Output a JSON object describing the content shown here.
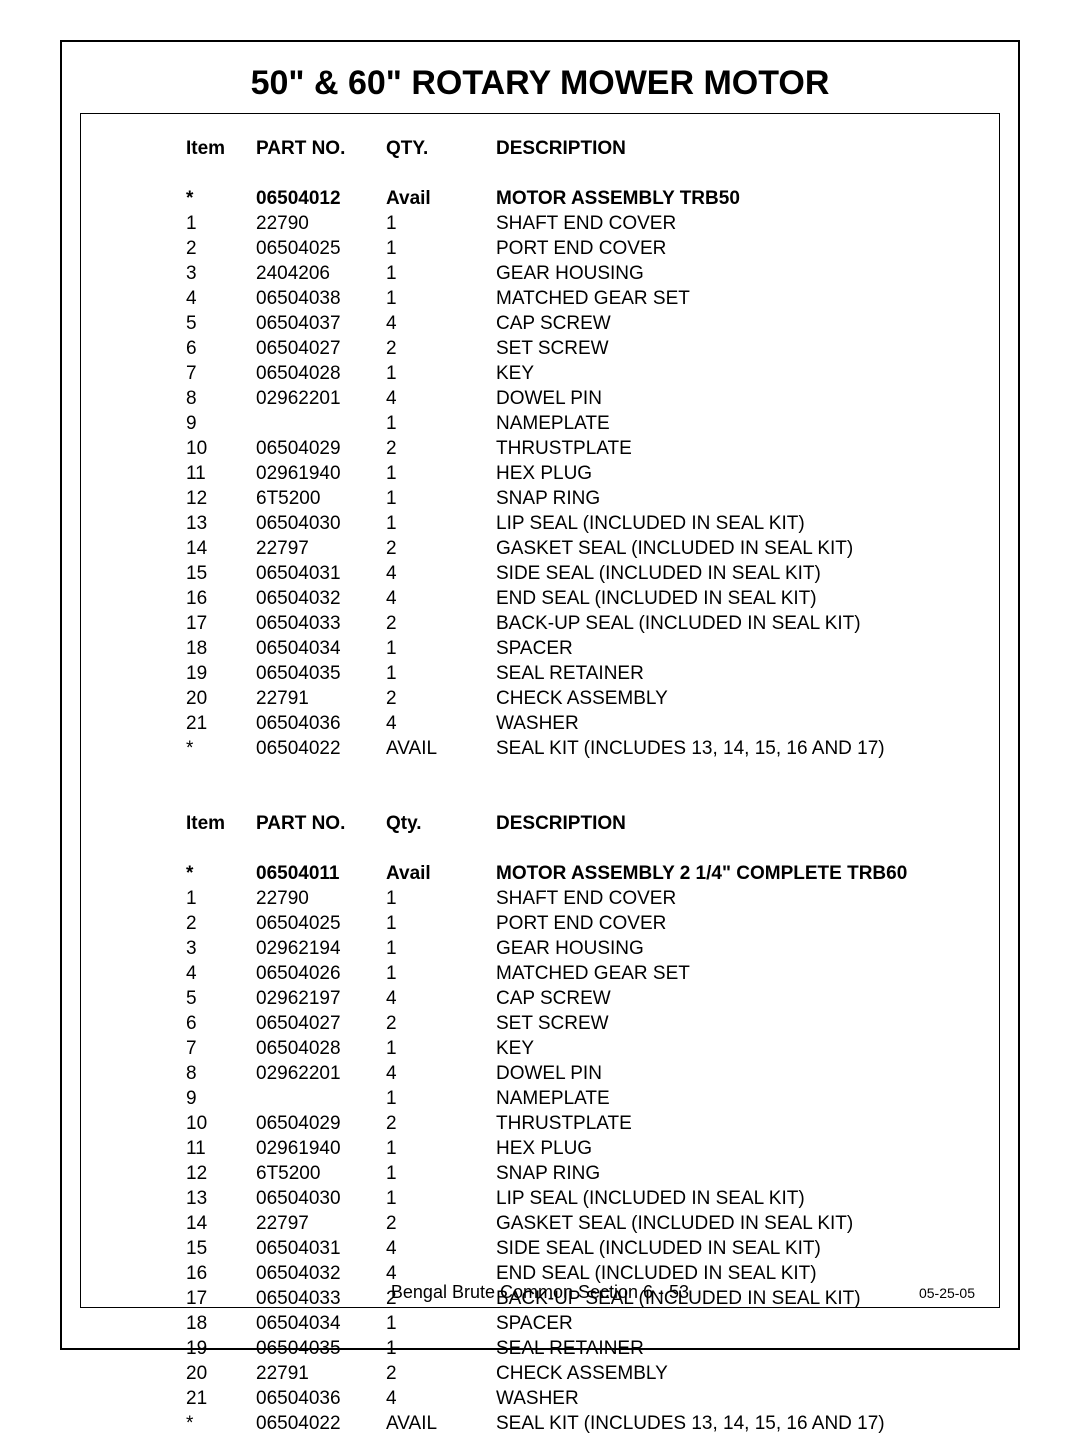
{
  "title": "50\" & 60\" ROTARY MOWER MOTOR",
  "footer": "Bengal Brute Common Section  6 - 53",
  "date": "05-25-05",
  "tables": [
    {
      "header": {
        "item": "Item",
        "part": "PART NO.",
        "qty": "QTY.",
        "desc": "DESCRIPTION"
      },
      "lead": {
        "item": "*",
        "part": "06504012",
        "qty": "Avail",
        "desc": "MOTOR ASSEMBLY TRB50"
      },
      "rows": [
        {
          "item": "1",
          "part": "22790",
          "qty": "1",
          "desc": "SHAFT END COVER"
        },
        {
          "item": "2",
          "part": "06504025",
          "qty": "1",
          "desc": "PORT END COVER"
        },
        {
          "item": "3",
          "part": "2404206",
          "qty": "1",
          "desc": "GEAR HOUSING"
        },
        {
          "item": "4",
          "part": "06504038",
          "qty": "1",
          "desc": "MATCHED GEAR SET"
        },
        {
          "item": "5",
          "part": "06504037",
          "qty": "4",
          "desc": "CAP SCREW"
        },
        {
          "item": "6",
          "part": "06504027",
          "qty": "2",
          "desc": "SET SCREW"
        },
        {
          "item": "7",
          "part": "06504028",
          "qty": "1",
          "desc": "KEY"
        },
        {
          "item": "8",
          "part": "02962201",
          "qty": "4",
          "desc": "DOWEL PIN"
        },
        {
          "item": "9",
          "part": "",
          "qty": "1",
          "desc": "NAMEPLATE"
        },
        {
          "item": "10",
          "part": "06504029",
          "qty": "2",
          "desc": "THRUSTPLATE"
        },
        {
          "item": "11",
          "part": "02961940",
          "qty": "1",
          "desc": "HEX PLUG"
        },
        {
          "item": "12",
          "part": "6T5200",
          "qty": "1",
          "desc": "SNAP RING"
        },
        {
          "item": "13",
          "part": "06504030",
          "qty": "1",
          "desc": "LIP SEAL (INCLUDED IN SEAL KIT)"
        },
        {
          "item": "14",
          "part": "22797",
          "qty": "2",
          "desc": "GASKET SEAL (INCLUDED IN SEAL KIT)"
        },
        {
          "item": "15",
          "part": "06504031",
          "qty": "4",
          "desc": "SIDE SEAL (INCLUDED IN SEAL KIT)"
        },
        {
          "item": "16",
          "part": "06504032",
          "qty": "4",
          "desc": "END SEAL (INCLUDED IN SEAL KIT)"
        },
        {
          "item": "17",
          "part": "06504033",
          "qty": "2",
          "desc": "BACK-UP SEAL (INCLUDED IN SEAL KIT)"
        },
        {
          "item": "18",
          "part": "06504034",
          "qty": "1",
          "desc": "SPACER"
        },
        {
          "item": "19",
          "part": "06504035",
          "qty": "1",
          "desc": "SEAL RETAINER"
        },
        {
          "item": "20",
          "part": "22791",
          "qty": "2",
          "desc": "CHECK ASSEMBLY"
        },
        {
          "item": "21",
          "part": "06504036",
          "qty": "4",
          "desc": "WASHER"
        },
        {
          "item": "*",
          "part": "06504022",
          "qty": "AVAIL",
          "desc": "SEAL KIT (INCLUDES 13, 14, 15, 16 AND 17)"
        }
      ]
    },
    {
      "header": {
        "item": "Item",
        "part": "PART NO.",
        "qty": "Qty.",
        "desc": "DESCRIPTION"
      },
      "lead": {
        "item": "*",
        "part": "06504011",
        "qty": "Avail",
        "desc": "MOTOR ASSEMBLY 2 1/4\"  COMPLETE TRB60"
      },
      "rows": [
        {
          "item": "1",
          "part": "22790",
          "qty": "1",
          "desc": "SHAFT END COVER"
        },
        {
          "item": "2",
          "part": "06504025",
          "qty": "1",
          "desc": "PORT END COVER"
        },
        {
          "item": "3",
          "part": "02962194",
          "qty": "1",
          "desc": "GEAR HOUSING"
        },
        {
          "item": "4",
          "part": "06504026",
          "qty": "1",
          "desc": "MATCHED GEAR SET"
        },
        {
          "item": "5",
          "part": "02962197",
          "qty": "4",
          "desc": "CAP SCREW"
        },
        {
          "item": "6",
          "part": "06504027",
          "qty": "2",
          "desc": "SET SCREW"
        },
        {
          "item": "7",
          "part": "06504028",
          "qty": "1",
          "desc": "KEY"
        },
        {
          "item": "8",
          "part": "02962201",
          "qty": "4",
          "desc": "DOWEL PIN"
        },
        {
          "item": "9",
          "part": "",
          "qty": "1",
          "desc": "NAMEPLATE"
        },
        {
          "item": "10",
          "part": "06504029",
          "qty": "2",
          "desc": "THRUSTPLATE"
        },
        {
          "item": "11",
          "part": "02961940",
          "qty": "1",
          "desc": "HEX PLUG"
        },
        {
          "item": "12",
          "part": "6T5200",
          "qty": "1",
          "desc": "SNAP RING"
        },
        {
          "item": "13",
          "part": "06504030",
          "qty": "1",
          "desc": "LIP SEAL (INCLUDED IN SEAL KIT)"
        },
        {
          "item": "14",
          "part": "22797",
          "qty": "2",
          "desc": "GASKET SEAL (INCLUDED IN SEAL KIT)"
        },
        {
          "item": "15",
          "part": "06504031",
          "qty": "4",
          "desc": "SIDE SEAL (INCLUDED IN SEAL KIT)"
        },
        {
          "item": "16",
          "part": "06504032",
          "qty": "4",
          "desc": "END SEAL (INCLUDED IN SEAL KIT)"
        },
        {
          "item": "17",
          "part": "06504033",
          "qty": "2",
          "desc": "BACK-UP SEAL (INCLUDED IN SEAL KIT)"
        },
        {
          "item": "18",
          "part": "06504034",
          "qty": "1",
          "desc": "SPACER"
        },
        {
          "item": "19",
          "part": "06504035",
          "qty": "1",
          "desc": "SEAL RETAINER"
        },
        {
          "item": "20",
          "part": "22791",
          "qty": "2",
          "desc": "CHECK ASSEMBLY"
        },
        {
          "item": "21",
          "part": "06504036",
          "qty": "4",
          "desc": "WASHER"
        },
        {
          "item": "*",
          "part": "06504022",
          "qty": "AVAIL",
          "desc": "SEAL KIT (INCLUDES 13, 14, 15, 16 AND 17)"
        }
      ]
    }
  ]
}
